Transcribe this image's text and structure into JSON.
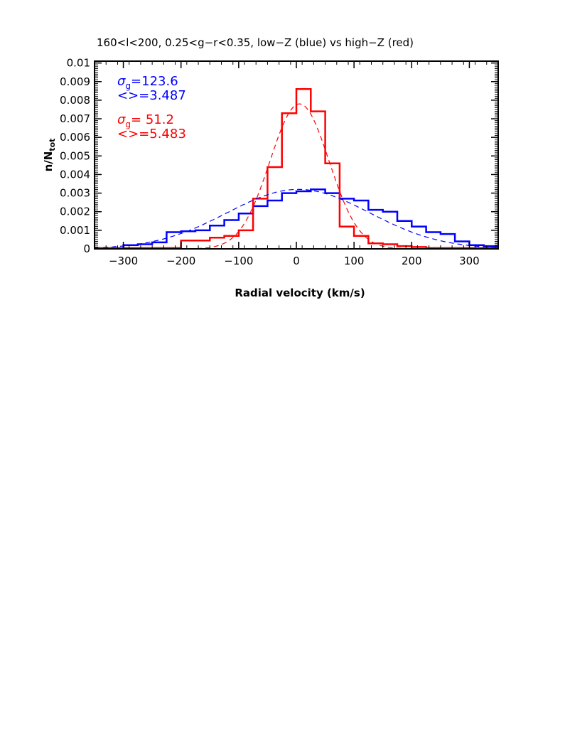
{
  "chart_data": {
    "type": "line",
    "title": "160<l<200, 0.25<g−r<0.35, low−Z (blue) vs high−Z (red)",
    "xlabel": "Radial velocity (km/s)",
    "ylabel": "n/N",
    "ylabel_sub": "tot",
    "xlim": [
      -350,
      350
    ],
    "ylim": [
      0,
      0.0101
    ],
    "x_ticks": [
      -300,
      -200,
      -100,
      0,
      100,
      200,
      300
    ],
    "x_tick_labels": [
      "−300",
      "−200",
      "−100",
      "0",
      "100",
      "200",
      "300"
    ],
    "y_ticks": [
      0,
      0.001,
      0.002,
      0.003,
      0.004,
      0.005,
      0.006,
      0.007,
      0.008,
      0.009,
      0.01
    ],
    "y_tick_labels": [
      "0",
      "0.001",
      "0.002",
      "0.003",
      "0.004",
      "0.005",
      "0.006",
      "0.007",
      "0.008",
      "0.009",
      "0.01"
    ],
    "bin_edges": [
      -375,
      -350,
      -325,
      -300,
      -275,
      -250,
      -225,
      -200,
      -175,
      -150,
      -125,
      -100,
      -75,
      -50,
      -25,
      0,
      25,
      50,
      75,
      100,
      125,
      150,
      175,
      200,
      225,
      250,
      275,
      300,
      325,
      350,
      375
    ],
    "series": [
      {
        "color": "#0000ff",
        "style": "histogram",
        "values": [
          5e-05,
          5e-05,
          5e-05,
          0.0002,
          0.00025,
          0.00035,
          0.0009,
          0.00095,
          0.001,
          0.00125,
          0.00155,
          0.0019,
          0.0023,
          0.0026,
          0.003,
          0.0031,
          0.0032,
          0.003,
          0.0027,
          0.0026,
          0.0021,
          0.002,
          0.0015,
          0.0012,
          0.0009,
          0.0008,
          0.0004,
          0.0002,
          0.00015,
          5e-05
        ]
      },
      {
        "color": "#ff0000",
        "style": "histogram",
        "values": [
          5e-05,
          5e-05,
          5e-05,
          5e-05,
          5e-05,
          5e-05,
          5e-05,
          0.00045,
          0.00045,
          0.0006,
          0.0007,
          0.001,
          0.0027,
          0.0044,
          0.0073,
          0.0086,
          0.0074,
          0.0046,
          0.0012,
          0.0007,
          0.0003,
          0.00025,
          0.00015,
          0.0001,
          5e-05,
          5e-05,
          5e-05,
          5e-05,
          5e-05,
          5e-05
        ]
      },
      {
        "color": "#0000ff",
        "style": "gaussian-fit",
        "mean": 3.487,
        "sigma": 123.6,
        "amplitude": 0.0032
      },
      {
        "color": "#ff0000",
        "style": "gaussian-fit",
        "mean": 5.483,
        "sigma": 51.2,
        "amplitude": 0.0078
      }
    ],
    "annotations": [
      {
        "color": "#0000ff",
        "sigma_label": "σ",
        "sigma_sub": "g",
        "sigma_value": "=123.6",
        "mean_label": "<>=3.487"
      },
      {
        "color": "#ff0000",
        "sigma_label": "σ",
        "sigma_sub": "g",
        "sigma_value": "= 51.2",
        "mean_label": "<>=5.483"
      }
    ]
  }
}
